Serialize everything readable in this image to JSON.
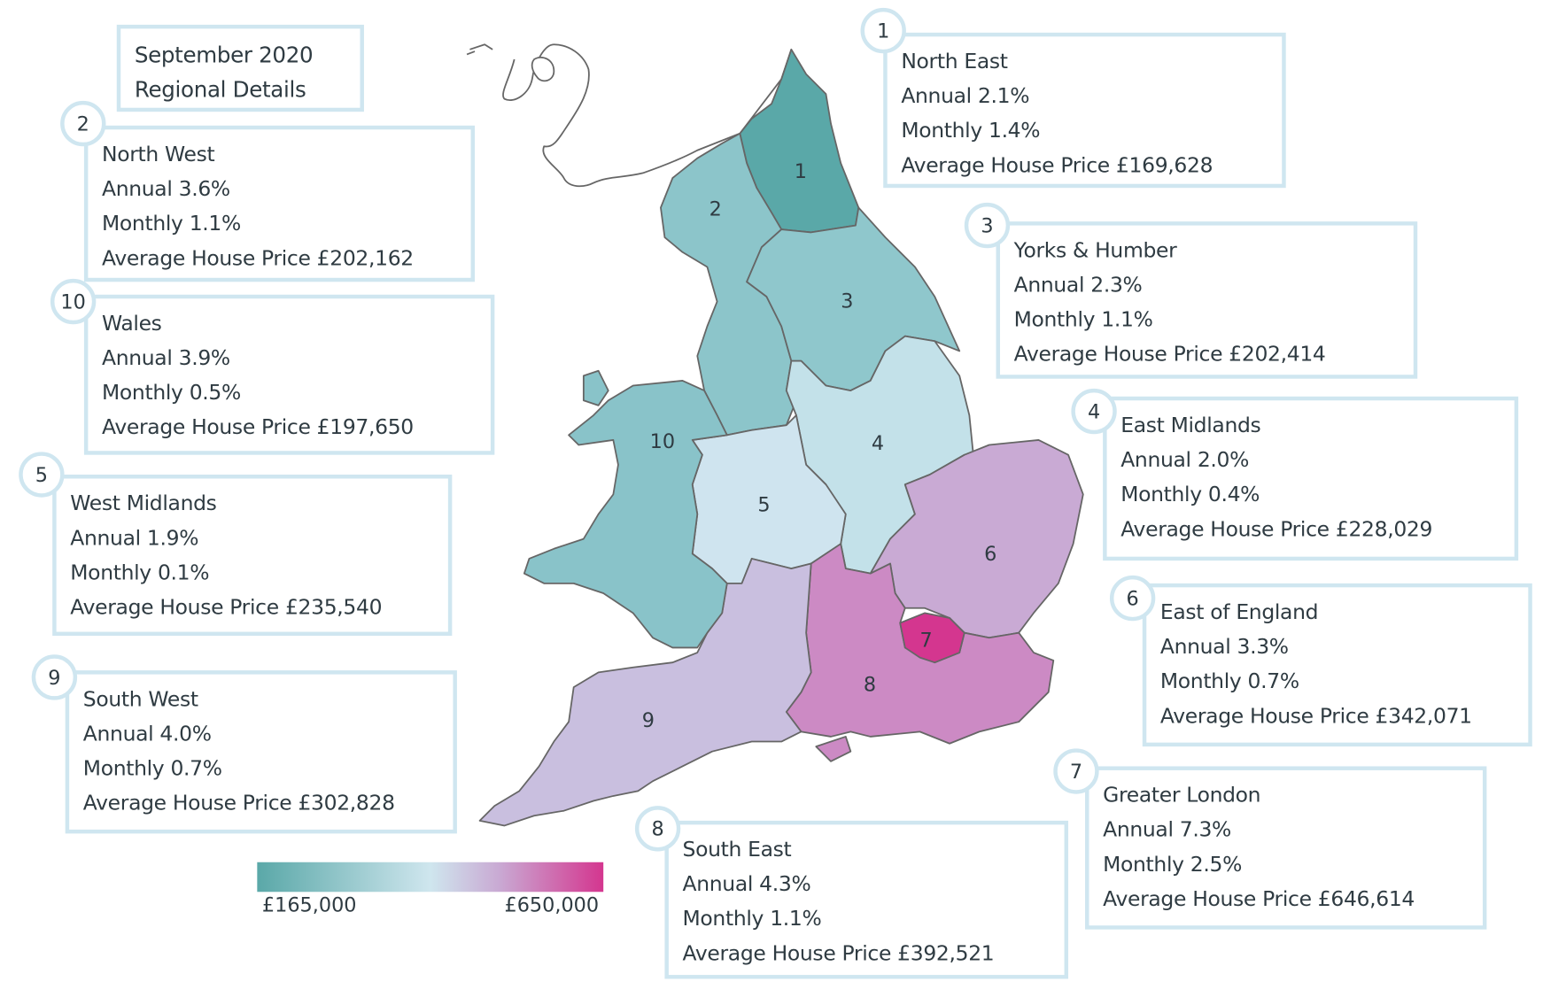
{
  "title": {
    "line1": "September 2020",
    "line2": "Regional Details"
  },
  "legend": {
    "min_label": "£165,000",
    "max_label": "£650,000",
    "colors": [
      "#5aa8a8",
      "#cfe6ee",
      "#c9a9d3",
      "#d4368f"
    ]
  },
  "regions": [
    {
      "num": "1",
      "name": "North East",
      "annual": "Annual 2.1%",
      "monthly": "Monthly 1.4%",
      "price": "Average House Price £169,628",
      "color": "#5aa8a8"
    },
    {
      "num": "2",
      "name": "North West",
      "annual": "Annual 3.6%",
      "monthly": "Monthly 1.1%",
      "price": "Average House Price £202,162",
      "color": "#8cc5ca"
    },
    {
      "num": "3",
      "name": "Yorks & Humber",
      "annual": "Annual 2.3%",
      "monthly": "Monthly 1.1%",
      "price": "Average House Price £202,414",
      "color": "#8fc7cc"
    },
    {
      "num": "4",
      "name": "East Midlands",
      "annual": "Annual 2.0%",
      "monthly": "Monthly 0.4%",
      "price": "Average House Price £228,029",
      "color": "#c3e1e9"
    },
    {
      "num": "5",
      "name": "West Midlands",
      "annual": "Annual 1.9%",
      "monthly": "Monthly 0.1%",
      "price": "Average House Price £235,540",
      "color": "#cfe4ef"
    },
    {
      "num": "6",
      "name": "East of England",
      "annual": "Annual 3.3%",
      "monthly": "Monthly 0.7%",
      "price": "Average House Price £342,071",
      "color": "#c9aad4"
    },
    {
      "num": "7",
      "name": "Greater London",
      "annual": "Annual 7.3%",
      "monthly": "Monthly 2.5%",
      "price": "Average House Price £646,614",
      "color": "#d4368f"
    },
    {
      "num": "8",
      "name": "South East",
      "annual": "Annual 4.3%",
      "monthly": "Monthly 1.1%",
      "price": "Average House Price £392,521",
      "color": "#cc8ac4"
    },
    {
      "num": "9",
      "name": "South West",
      "annual": "Annual 4.0%",
      "monthly": "Monthly 0.7%",
      "price": "Average House Price £302,828",
      "color": "#c9bfdf"
    },
    {
      "num": "10",
      "name": "Wales",
      "annual": "Annual 3.9%",
      "monthly": "Monthly 0.5%",
      "price": "Average House Price £197,650",
      "color": "#89c3c9"
    }
  ]
}
